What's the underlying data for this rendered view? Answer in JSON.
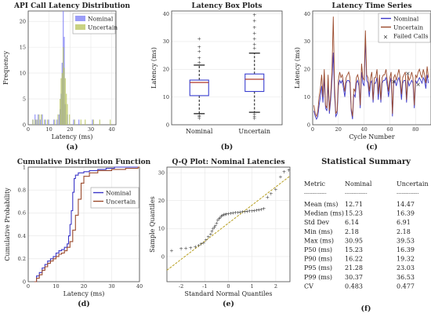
{
  "chart_data": [
    {
      "id": "a",
      "type": "histogram",
      "title": "API Call Latency Distribution",
      "xlabel": "Latency (ms)",
      "ylabel": "Frequency",
      "xlim": [
        0,
        42
      ],
      "ylim": [
        0,
        22
      ],
      "xticks": [
        0,
        10,
        20,
        30,
        40
      ],
      "yticks": [
        0,
        5,
        10,
        15,
        20
      ],
      "legend": "top-right",
      "panel_label": "(a)",
      "series": [
        {
          "name": "Nominal",
          "color": "#7a7cf5",
          "bin_width": 0.5,
          "bins": [
            [
              2.0,
              1
            ],
            [
              3.0,
              2
            ],
            [
              3.5,
              1
            ],
            [
              4.5,
              2
            ],
            [
              5.5,
              1
            ],
            [
              6.5,
              2
            ],
            [
              8.0,
              1
            ],
            [
              9.5,
              1
            ],
            [
              12.0,
              1
            ],
            [
              13.5,
              1
            ],
            [
              14.5,
              2
            ],
            [
              15.0,
              3
            ],
            [
              15.5,
              6
            ],
            [
              16.0,
              12
            ],
            [
              16.5,
              22
            ],
            [
              17.0,
              17
            ],
            [
              17.5,
              4
            ],
            [
              18.5,
              2
            ],
            [
              21.5,
              1
            ],
            [
              24.0,
              1
            ],
            [
              30.5,
              1
            ]
          ]
        },
        {
          "name": "Uncertain",
          "color": "#b7c35a",
          "bin_width": 0.5,
          "bins": [
            [
              2.0,
              1
            ],
            [
              3.0,
              1
            ],
            [
              4.0,
              1
            ],
            [
              5.0,
              2
            ],
            [
              6.0,
              2
            ],
            [
              7.5,
              1
            ],
            [
              9.0,
              1
            ],
            [
              12.5,
              1
            ],
            [
              14.0,
              2
            ],
            [
              15.0,
              5
            ],
            [
              15.5,
              9
            ],
            [
              16.0,
              10
            ],
            [
              16.5,
              15
            ],
            [
              17.0,
              11
            ],
            [
              17.5,
              9
            ],
            [
              18.0,
              6
            ],
            [
              18.5,
              4
            ],
            [
              19.5,
              2
            ],
            [
              22.0,
              1
            ],
            [
              25.0,
              1
            ],
            [
              27.0,
              1
            ],
            [
              31.0,
              1
            ],
            [
              34.0,
              1
            ],
            [
              39.0,
              1
            ]
          ]
        }
      ]
    },
    {
      "id": "b",
      "type": "box",
      "title": "Latency Box Plots",
      "ylabel": "Latency (ms)",
      "ylim": [
        0,
        41
      ],
      "yticks": [
        0,
        10,
        20,
        30,
        40
      ],
      "categories": [
        "Nominal",
        "Uncertain"
      ],
      "panel_label": "(b)",
      "boxes": [
        {
          "name": "Nominal",
          "q1": 10.5,
          "median": 15.23,
          "q3": 16.1,
          "whisker_low": 4.0,
          "whisker_high": 21.5,
          "outliers": [
            2.2,
            2.8,
            3.2,
            22.5,
            24.0,
            26.5,
            28.0,
            30.95
          ]
        },
        {
          "name": "Uncertain",
          "q1": 12.0,
          "median": 16.39,
          "q3": 18.3,
          "whisker_low": 4.5,
          "whisker_high": 25.8,
          "outliers": [
            2.2,
            3.0,
            3.8,
            27.5,
            29.0,
            31.0,
            33.0,
            35.0,
            37.5,
            39.53
          ]
        }
      ]
    },
    {
      "id": "c",
      "type": "line",
      "title": "Latency Time Series",
      "xlabel": "Cycle Number",
      "ylabel": "Latency (ms)",
      "xlim": [
        0,
        92
      ],
      "ylim": [
        0,
        41
      ],
      "xticks": [
        0,
        20,
        40,
        60,
        80
      ],
      "yticks": [
        0,
        10,
        20,
        30,
        40
      ],
      "legend": "top-right",
      "panel_label": "(c)",
      "series": [
        {
          "name": "Nominal",
          "color": "#3a36c8",
          "values": [
            5,
            3,
            2,
            3,
            7,
            10,
            14,
            8,
            17,
            6,
            5,
            15,
            4,
            9,
            16,
            26,
            11,
            3,
            4,
            14,
            16,
            15,
            16,
            13,
            10,
            15,
            16,
            16,
            15,
            5,
            2,
            11,
            10,
            15,
            16,
            14,
            6,
            19,
            15,
            14,
            31,
            16,
            15,
            10,
            15,
            16,
            8,
            15,
            15,
            17,
            9,
            16,
            8,
            15,
            16,
            16,
            17,
            14,
            10,
            15,
            17,
            3,
            15,
            16,
            14,
            16,
            17,
            15,
            9,
            15,
            16,
            16,
            8,
            16,
            14,
            15,
            16,
            15,
            6,
            16,
            15,
            16,
            17,
            16,
            15,
            17,
            16,
            13,
            18,
            15
          ]
        },
        {
          "name": "Uncertain",
          "color": "#9b4a2c",
          "values": [
            7,
            4,
            3,
            5,
            10,
            13,
            18,
            10,
            20,
            7,
            6,
            18,
            5,
            11,
            19,
            39,
            14,
            4,
            5,
            16,
            19,
            17,
            18,
            15,
            12,
            17,
            18,
            19,
            17,
            6,
            3,
            13,
            12,
            17,
            18,
            16,
            7,
            22,
            17,
            16,
            34,
            18,
            17,
            12,
            17,
            19,
            9,
            17,
            17,
            20,
            11,
            18,
            9,
            17,
            18,
            18,
            20,
            16,
            12,
            17,
            19,
            4,
            17,
            18,
            16,
            18,
            20,
            17,
            11,
            17,
            18,
            19,
            9,
            18,
            16,
            17,
            19,
            17,
            7,
            18,
            17,
            19,
            20,
            18,
            17,
            20,
            18,
            15,
            21,
            17
          ]
        },
        {
          "name": "Failed Calls",
          "color": "#c8462e",
          "marker": "x",
          "points": [
            [
              63,
              15.5
            ],
            [
              74,
              18.5
            ],
            [
              82,
              14.5
            ]
          ]
        }
      ]
    },
    {
      "id": "d",
      "type": "line",
      "title": "Cumulative Distribution Function",
      "xlabel": "Latency (ms)",
      "ylabel": "Cumulative Probability",
      "xlim": [
        0,
        40
      ],
      "ylim": [
        0,
        1
      ],
      "xticks": [
        0,
        10,
        20,
        30,
        40
      ],
      "yticks": [
        0,
        0.2,
        0.4,
        0.6,
        0.8,
        1
      ],
      "legend": "right",
      "panel_label": "(d)",
      "series": [
        {
          "name": "Nominal",
          "color": "#3a36c8",
          "x": [
            2.2,
            3,
            4,
            5,
            6,
            7,
            8,
            9,
            10,
            11,
            12,
            13,
            14,
            14.5,
            15,
            15.5,
            16,
            16.5,
            17,
            18,
            20,
            22,
            25,
            28,
            31
          ],
          "y": [
            0,
            0.05,
            0.08,
            0.12,
            0.15,
            0.18,
            0.2,
            0.22,
            0.25,
            0.27,
            0.28,
            0.3,
            0.33,
            0.4,
            0.5,
            0.62,
            0.78,
            0.9,
            0.93,
            0.95,
            0.96,
            0.97,
            0.98,
            0.99,
            1.0
          ]
        },
        {
          "name": "Uncertain",
          "color": "#9b4a2c",
          "x": [
            2.2,
            3,
            4,
            5,
            6,
            7,
            8,
            9,
            10,
            11,
            12,
            13,
            14,
            15,
            16,
            17,
            18,
            19,
            20,
            22,
            25,
            30,
            35,
            39.5
          ],
          "y": [
            0,
            0.03,
            0.06,
            0.1,
            0.13,
            0.16,
            0.18,
            0.2,
            0.22,
            0.24,
            0.25,
            0.27,
            0.3,
            0.35,
            0.45,
            0.58,
            0.72,
            0.86,
            0.92,
            0.95,
            0.97,
            0.98,
            0.99,
            1.0
          ]
        }
      ]
    },
    {
      "id": "e",
      "type": "scatter",
      "title": "Q-Q Plot: Nominal Latencies",
      "xlabel": "Standard Normal Quantiles",
      "ylabel": "Sample Quantiles",
      "xlim": [
        -2.6,
        2.6
      ],
      "ylim": [
        -9,
        32
      ],
      "xticks": [
        -2,
        -1,
        0,
        1,
        2
      ],
      "yticks": [
        0,
        10,
        20,
        30
      ],
      "panel_label": "(e)",
      "reference_line": {
        "x": [
          -2.6,
          2.6
        ],
        "y": [
          -4.9,
          28.8
        ],
        "color": "#b8a021"
      },
      "points_color": "#3a4fc8",
      "points": [
        [
          -2.4,
          2.2
        ],
        [
          -2.0,
          2.8
        ],
        [
          -1.8,
          3.0
        ],
        [
          -1.6,
          3.2
        ],
        [
          -1.4,
          3.5
        ],
        [
          -1.25,
          4.0
        ],
        [
          -1.15,
          4.5
        ],
        [
          -1.05,
          5.0
        ],
        [
          -0.95,
          6.0
        ],
        [
          -0.85,
          7.0
        ],
        [
          -0.75,
          8.0
        ],
        [
          -0.7,
          9.0
        ],
        [
          -0.65,
          10.0
        ],
        [
          -0.6,
          10.5
        ],
        [
          -0.55,
          11.0
        ],
        [
          -0.5,
          12.0
        ],
        [
          -0.45,
          13.0
        ],
        [
          -0.4,
          13.5
        ],
        [
          -0.35,
          14.0
        ],
        [
          -0.3,
          14.5
        ],
        [
          -0.25,
          14.8
        ],
        [
          -0.2,
          15.0
        ],
        [
          -0.15,
          15.1
        ],
        [
          -0.1,
          15.2
        ],
        [
          0.0,
          15.3
        ],
        [
          0.1,
          15.5
        ],
        [
          0.2,
          15.6
        ],
        [
          0.3,
          15.7
        ],
        [
          0.4,
          15.8
        ],
        [
          0.5,
          15.9
        ],
        [
          0.6,
          16.0
        ],
        [
          0.7,
          16.1
        ],
        [
          0.8,
          16.2
        ],
        [
          0.9,
          16.3
        ],
        [
          1.0,
          16.4
        ],
        [
          1.1,
          16.5
        ],
        [
          1.2,
          16.6
        ],
        [
          1.3,
          16.7
        ],
        [
          1.4,
          16.9
        ],
        [
          1.5,
          17.2
        ],
        [
          1.65,
          21.3
        ],
        [
          1.8,
          22.5
        ],
        [
          2.0,
          24.0
        ],
        [
          2.2,
          28.5
        ],
        [
          2.35,
          30.37
        ],
        [
          2.55,
          30.95
        ]
      ]
    },
    {
      "id": "f",
      "type": "table",
      "title": "Statistical Summary",
      "panel_label": "(f)",
      "columns": [
        "Metric",
        "Nominal",
        "Uncertain"
      ],
      "rows": [
        [
          "Mean (ms)",
          "12.71",
          "14.47"
        ],
        [
          "Median (ms)",
          "15.23",
          "16.39"
        ],
        [
          "Std Dev",
          "6.14",
          "6.91"
        ],
        [
          "Min (ms)",
          "2.18",
          "2.18"
        ],
        [
          "Max (ms)",
          "30.95",
          "39.53"
        ],
        [
          "P50 (ms)",
          "15.23",
          "16.39"
        ],
        [
          "P90 (ms)",
          "16.22",
          "19.32"
        ],
        [
          "P95 (ms)",
          "21.28",
          "23.03"
        ],
        [
          "P99 (ms)",
          "30.37",
          "36.53"
        ],
        [
          "CV",
          "0.483",
          "0.477"
        ]
      ]
    }
  ]
}
